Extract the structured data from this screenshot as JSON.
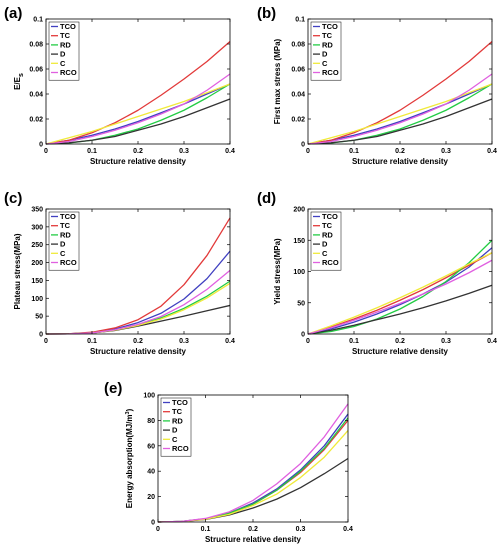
{
  "colors": {
    "TCO": "#4040c0",
    "TC": "#e23a3a",
    "RD": "#22cc44",
    "D": "#333333",
    "C": "#f0ea3a",
    "RCO": "#e060e0"
  },
  "chart_data": [
    {
      "id": "a",
      "panel_label": "(a)",
      "type": "line",
      "xlabel": "Structure relative density",
      "ylabel": "E/Es",
      "ylabel_main": "E/E",
      "ylabel_sub": "s",
      "xlim": [
        0,
        0.4
      ],
      "ylim": [
        0,
        0.1
      ],
      "xticks": [
        0,
        0.1,
        0.2,
        0.3,
        0.4
      ],
      "xtick_labels": [
        "0",
        "0.1",
        "0.2",
        "0.3",
        "0.4"
      ],
      "yticks": [
        0,
        0.02,
        0.04,
        0.06,
        0.08,
        0.1
      ],
      "ytick_labels": [
        "0",
        "0.02",
        "0.04",
        "0.06",
        "0.08",
        "0.1"
      ],
      "legend_placement": "top-left",
      "x": [
        0,
        0.05,
        0.1,
        0.15,
        0.2,
        0.25,
        0.3,
        0.35,
        0.4
      ],
      "series": [
        {
          "name": "TCO",
          "values": [
            0,
            0.003,
            0.007,
            0.012,
            0.018,
            0.025,
            0.032,
            0.04,
            0.048
          ]
        },
        {
          "name": "TC",
          "values": [
            0,
            0.003,
            0.009,
            0.017,
            0.027,
            0.039,
            0.052,
            0.066,
            0.082
          ]
        },
        {
          "name": "RD",
          "values": [
            0,
            0.0008,
            0.003,
            0.007,
            0.012,
            0.019,
            0.027,
            0.037,
            0.048
          ]
        },
        {
          "name": "D",
          "values": [
            0,
            0.001,
            0.003,
            0.006,
            0.011,
            0.016,
            0.022,
            0.029,
            0.036
          ]
        },
        {
          "name": "C",
          "values": [
            0,
            0.005,
            0.01,
            0.016,
            0.022,
            0.028,
            0.034,
            0.041,
            0.048
          ]
        },
        {
          "name": "RCO",
          "values": [
            0,
            0.002,
            0.006,
            0.011,
            0.017,
            0.024,
            0.032,
            0.043,
            0.056
          ]
        }
      ]
    },
    {
      "id": "b",
      "panel_label": "(b)",
      "type": "line",
      "xlabel": "Structure relative density",
      "ylabel": "First max stress (MPa)",
      "xlim": [
        0,
        0.4
      ],
      "ylim": [
        0,
        0.1
      ],
      "xticks": [
        0,
        0.1,
        0.2,
        0.3,
        0.4
      ],
      "xtick_labels": [
        "0",
        "0.1",
        "0.2",
        "0.3",
        "0.4"
      ],
      "yticks": [
        0,
        0.02,
        0.04,
        0.06,
        0.08,
        0.1
      ],
      "ytick_labels": [
        "0",
        "0.02",
        "0.04",
        "0.06",
        "0.08",
        "0.1"
      ],
      "legend_placement": "top-left",
      "x": [
        0,
        0.05,
        0.1,
        0.15,
        0.2,
        0.25,
        0.3,
        0.35,
        0.4
      ],
      "series": [
        {
          "name": "TCO",
          "values": [
            0,
            0.003,
            0.007,
            0.012,
            0.018,
            0.025,
            0.032,
            0.04,
            0.048
          ]
        },
        {
          "name": "TC",
          "values": [
            0,
            0.003,
            0.009,
            0.017,
            0.027,
            0.039,
            0.052,
            0.066,
            0.082
          ]
        },
        {
          "name": "RD",
          "values": [
            0,
            0.0008,
            0.003,
            0.007,
            0.012,
            0.019,
            0.027,
            0.037,
            0.048
          ]
        },
        {
          "name": "D",
          "values": [
            0,
            0.001,
            0.003,
            0.006,
            0.011,
            0.016,
            0.022,
            0.029,
            0.036
          ]
        },
        {
          "name": "C",
          "values": [
            0,
            0.005,
            0.01,
            0.016,
            0.022,
            0.028,
            0.034,
            0.041,
            0.048
          ]
        },
        {
          "name": "RCO",
          "values": [
            0,
            0.002,
            0.006,
            0.011,
            0.017,
            0.024,
            0.032,
            0.043,
            0.056
          ]
        }
      ]
    },
    {
      "id": "c",
      "panel_label": "(c)",
      "type": "line",
      "xlabel": "Structure relative density",
      "ylabel": "Plateau stress(MPa)",
      "xlim": [
        0,
        0.4
      ],
      "ylim": [
        0,
        350
      ],
      "xticks": [
        0,
        0.1,
        0.2,
        0.3,
        0.4
      ],
      "xtick_labels": [
        "0",
        "0.1",
        "0.2",
        "0.3",
        "0.4"
      ],
      "yticks": [
        0,
        50,
        100,
        150,
        200,
        250,
        300,
        350
      ],
      "ytick_labels": [
        "0",
        "50",
        "100",
        "150",
        "200",
        "250",
        "300",
        "350"
      ],
      "legend_placement": "top-left",
      "x": [
        0,
        0.05,
        0.1,
        0.15,
        0.2,
        0.25,
        0.3,
        0.35,
        0.4
      ],
      "series": [
        {
          "name": "TCO",
          "values": [
            0,
            0.5,
            4,
            14,
            32,
            58,
            98,
            155,
            232
          ]
        },
        {
          "name": "TC",
          "values": [
            0,
            0.5,
            5,
            17,
            40,
            78,
            138,
            220,
            325
          ]
        },
        {
          "name": "RD",
          "values": [
            0,
            0.4,
            3,
            11,
            25,
            45,
            72,
            106,
            148
          ]
        },
        {
          "name": "D",
          "values": [
            0,
            0.4,
            3,
            10,
            22,
            36,
            50,
            65,
            80
          ]
        },
        {
          "name": "C",
          "values": [
            0,
            0.4,
            3,
            11,
            24,
            42,
            68,
            101,
            142
          ]
        },
        {
          "name": "RCO",
          "values": [
            0,
            0.4,
            3,
            12,
            27,
            49,
            82,
            125,
            178
          ]
        }
      ]
    },
    {
      "id": "d",
      "panel_label": "(d)",
      "type": "line",
      "xlabel": "Structure relative density",
      "ylabel": "Yield stress(MPa)",
      "xlim": [
        0,
        0.4
      ],
      "ylim": [
        0,
        200
      ],
      "xticks": [
        0,
        0.1,
        0.2,
        0.3,
        0.4
      ],
      "xtick_labels": [
        "0",
        "0.1",
        "0.2",
        "0.3",
        "0.4"
      ],
      "yticks": [
        0,
        50,
        100,
        150,
        200
      ],
      "ytick_labels": [
        "0",
        "50",
        "100",
        "150",
        "200"
      ],
      "legend_placement": "top-left",
      "x": [
        0,
        0.05,
        0.1,
        0.15,
        0.2,
        0.25,
        0.3,
        0.35,
        0.4
      ],
      "series": [
        {
          "name": "TCO",
          "values": [
            0,
            8,
            19,
            32,
            47,
            64,
            83,
            107,
            138
          ]
        },
        {
          "name": "TC",
          "values": [
            0,
            11,
            24,
            38,
            54,
            71,
            90,
            110,
            130
          ]
        },
        {
          "name": "RD",
          "values": [
            0,
            4,
            12,
            24,
            40,
            60,
            84,
            114,
            150
          ]
        },
        {
          "name": "D",
          "values": [
            0,
            6,
            14,
            23,
            32,
            42,
            53,
            65,
            78
          ]
        },
        {
          "name": "C",
          "values": [
            0,
            13,
            27,
            42,
            58,
            75,
            93,
            112,
            130
          ]
        },
        {
          "name": "RCO",
          "values": [
            0,
            10,
            22,
            35,
            49,
            64,
            80,
            98,
            118
          ]
        }
      ]
    },
    {
      "id": "e",
      "panel_label": "(e)",
      "type": "line",
      "xlabel": "Structure relative density",
      "ylabel": "Energy absorption(MJ/m³)",
      "ylabel_main": "Energy absorption(MJ/m",
      "ylabel_sup": "3",
      "ylabel_end": ")",
      "xlim": [
        0,
        0.4
      ],
      "ylim": [
        0,
        100
      ],
      "xticks": [
        0,
        0.1,
        0.2,
        0.3,
        0.4
      ],
      "xtick_labels": [
        "0",
        "0.1",
        "0.2",
        "0.3",
        "0.4"
      ],
      "yticks": [
        0,
        20,
        40,
        60,
        80,
        100
      ],
      "ytick_labels": [
        "0",
        "20",
        "40",
        "60",
        "80",
        "100"
      ],
      "legend_placement": "top-left",
      "x": [
        0,
        0.05,
        0.1,
        0.15,
        0.2,
        0.25,
        0.3,
        0.35,
        0.4
      ],
      "series": [
        {
          "name": "TCO",
          "values": [
            0,
            0.5,
            2.5,
            7,
            15,
            26,
            41,
            60,
            85
          ]
        },
        {
          "name": "TC",
          "values": [
            0,
            0.5,
            2.5,
            7,
            14,
            25,
            39,
            57,
            80
          ]
        },
        {
          "name": "RD",
          "values": [
            0,
            0.5,
            2.5,
            7,
            14,
            25,
            40,
            58,
            82
          ]
        },
        {
          "name": "D",
          "values": [
            0,
            0.4,
            2,
            5.5,
            11,
            18,
            27,
            38,
            50
          ]
        },
        {
          "name": "C",
          "values": [
            0,
            0.4,
            2.2,
            6,
            13,
            22,
            35,
            51,
            72
          ]
        },
        {
          "name": "RCO",
          "values": [
            0,
            0.5,
            2.8,
            8,
            17,
            30,
            46,
            67,
            93
          ]
        }
      ]
    }
  ]
}
